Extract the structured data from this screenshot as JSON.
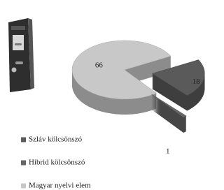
{
  "chart_data": {
    "type": "pie3d",
    "categories": [
      "Szláv kölcsönszó",
      "Hibrid kölcsönszó",
      "Magyar nyelvi elem"
    ],
    "values": [
      18,
      1,
      66
    ],
    "colors": [
      "#5a5a5a",
      "#666666",
      "#c8c8c8"
    ]
  }
}
